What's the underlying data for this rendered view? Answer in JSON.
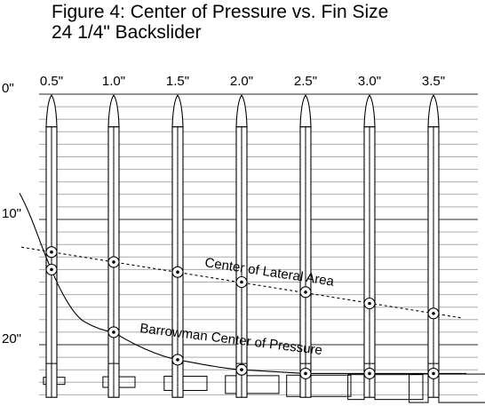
{
  "title": {
    "line1": "Figure 4: Center of Pressure vs. Fin Size",
    "line2": "24 1/4\" Backslider"
  },
  "chart_data": {
    "type": "diagram",
    "fin_sizes": [
      "0.5\"",
      "1.0\"",
      "1.5\"",
      "2.0\"",
      "2.5\"",
      "3.0\"",
      "3.5\""
    ],
    "y_axis": {
      "range_inches": [
        0,
        24.25
      ],
      "tick_labels": [
        {
          "label": "0\"",
          "inches": 0
        },
        {
          "label": "10\"",
          "inches": 10
        },
        {
          "label": "20\"",
          "inches": 20
        }
      ],
      "grid_line_every_inches": 1
    },
    "curves": [
      {
        "name": "Center of Lateral Area",
        "style": "dashed",
        "marker_positions_inches": [
          12.6,
          13.4,
          14.2,
          15.0,
          15.8,
          16.7,
          17.5
        ]
      },
      {
        "name": "Barrowman Center of Pressure",
        "style": "solid",
        "marker_positions_inches": [
          14.0,
          19.0,
          21.2,
          22.0,
          22.3,
          22.3,
          22.3
        ]
      }
    ]
  }
}
